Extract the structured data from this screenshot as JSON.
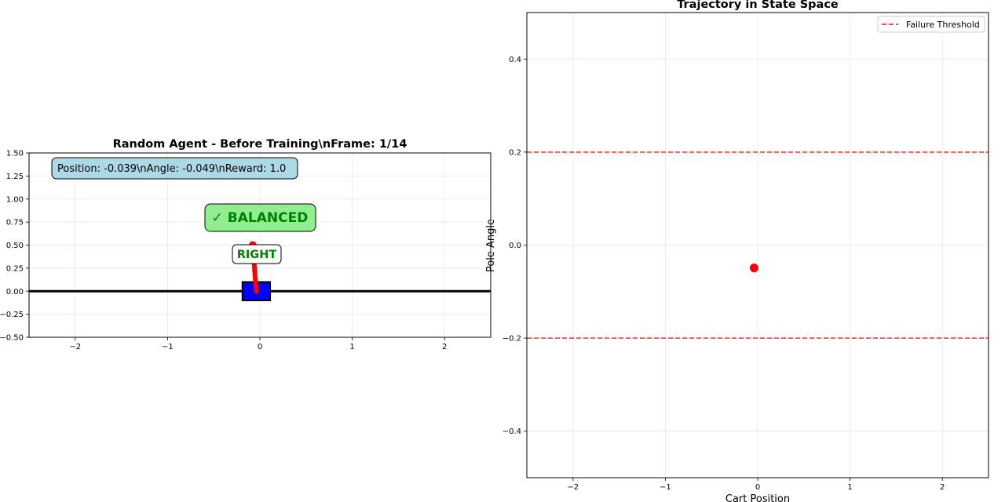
{
  "chart_data": [
    {
      "type": "scatter",
      "title": "Random Agent - Before Training\\nFrame: 1/14",
      "xlim": [
        -2.5,
        2.5
      ],
      "ylim": [
        -0.5,
        1.5
      ],
      "x_ticks": [
        -2,
        -1,
        0,
        1,
        2
      ],
      "y_ticks": [
        -0.5,
        -0.25,
        0.0,
        0.25,
        0.5,
        0.75,
        1.0,
        1.25,
        1.5
      ],
      "x_tick_labels": [
        "−2",
        "−1",
        "0",
        "1",
        "2"
      ],
      "y_tick_labels": [
        "−0.50",
        "−0.25",
        "0.00",
        "0.25",
        "0.50",
        "0.75",
        "1.00",
        "1.25",
        "1.50"
      ],
      "grid": true,
      "track_y": 0.0,
      "cart": {
        "x": -0.039,
        "y": 0.0,
        "width": 0.3,
        "height": 0.2,
        "color": "#0000ff"
      },
      "pole": {
        "x0": -0.039,
        "y0": 0.0,
        "x1": -0.078,
        "y1": 0.5,
        "color": "#ff0000"
      },
      "annotations": {
        "state": "Position: -0.039\\nAngle: -0.049\\nReward: 1.0",
        "status": "✓ BALANCED",
        "action": "RIGHT"
      },
      "colors": {
        "state_box": "#add8e6",
        "status_box": "#90ee90",
        "status_text": "#008000",
        "action_text": "#008000"
      }
    },
    {
      "type": "scatter",
      "title": "Trajectory in State Space",
      "xlabel": "Cart Position",
      "ylabel": "Pole Angle",
      "xlim": [
        -2.5,
        2.5
      ],
      "ylim": [
        -0.5,
        0.5
      ],
      "x_ticks": [
        -2,
        -1,
        0,
        1,
        2
      ],
      "y_ticks": [
        -0.4,
        -0.2,
        0.0,
        0.2,
        0.4
      ],
      "x_tick_labels": [
        "−2",
        "−1",
        "0",
        "1",
        "2"
      ],
      "y_tick_labels": [
        "−0.4",
        "−0.2",
        "0.0",
        "0.2",
        "0.4"
      ],
      "grid": true,
      "points": [
        {
          "x": -0.039,
          "y": -0.049
        }
      ],
      "point_color": "#ff0000",
      "thresholds": [
        0.2,
        -0.2
      ],
      "threshold_color": "#ff0000",
      "legend": {
        "position": "top-right",
        "entries": [
          "Failure Threshold"
        ]
      }
    }
  ]
}
